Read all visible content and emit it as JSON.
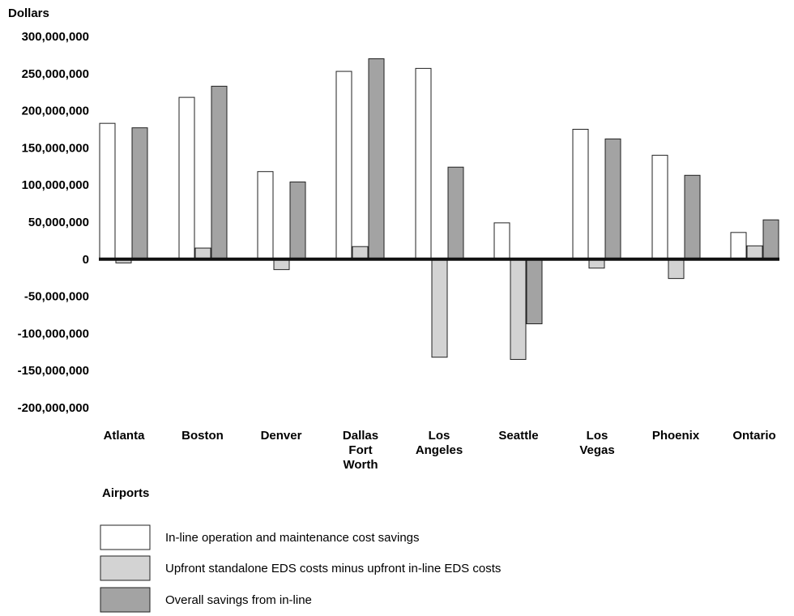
{
  "chart_data": {
    "type": "bar",
    "ylabel": "Dollars",
    "xlabel": "Airports",
    "ylim": [
      -200000000,
      300000000
    ],
    "yticks": [
      300000000,
      250000000,
      200000000,
      150000000,
      100000000,
      50000000,
      0,
      -50000000,
      -100000000,
      -150000000,
      -200000000
    ],
    "ytick_labels": [
      "300,000,000",
      "250,000,000",
      "200,000,000",
      "150,000,000",
      "100,000,000",
      "50,000,000",
      "0",
      "-50,000,000",
      "-100,000,000",
      "-150,000,000",
      "-200,000,000"
    ],
    "categories": [
      [
        "Atlanta"
      ],
      [
        "Boston"
      ],
      [
        "Denver"
      ],
      [
        "Dallas",
        "Fort",
        "Worth"
      ],
      [
        "Los",
        "Angeles"
      ],
      [
        "Seattle"
      ],
      [
        "Los",
        "Vegas"
      ],
      [
        "Phoenix"
      ],
      [
        "Ontario"
      ]
    ],
    "series": [
      {
        "name": "In-line operation and maintenance cost savings",
        "color": "#ffffff",
        "values": [
          183000000,
          218000000,
          118000000,
          253000000,
          257000000,
          49000000,
          175000000,
          140000000,
          36000000
        ]
      },
      {
        "name": "Upfront standalone EDS costs minus upfront in-line EDS costs",
        "color": "#d3d3d3",
        "values": [
          -5000000,
          15000000,
          -14000000,
          17000000,
          -132000000,
          -135000000,
          -12000000,
          -26000000,
          18000000
        ]
      },
      {
        "name": "Overall savings from in-line",
        "color": "#a3a3a3",
        "values": [
          177000000,
          233000000,
          104000000,
          270000000,
          124000000,
          -87000000,
          162000000,
          113000000,
          53000000
        ]
      }
    ],
    "legend_position": "bottom-left",
    "grid": false
  }
}
